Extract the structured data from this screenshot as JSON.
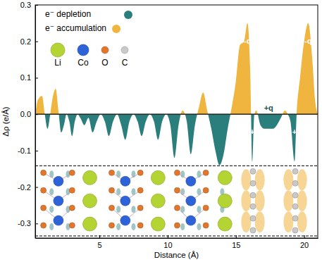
{
  "chart_data": {
    "type": "area",
    "x_label": "Distance (Å)",
    "y_label": "Δρ (e/Å)",
    "x": [
      0.3,
      0.5,
      0.8,
      1.0,
      1.2,
      1.4,
      1.6,
      1.8,
      2.0,
      2.2,
      2.4,
      2.6,
      2.8,
      3.0,
      3.2,
      3.4,
      3.6,
      3.9,
      4.2,
      4.5,
      4.8,
      5.1,
      5.4,
      5.7,
      6.0,
      6.3,
      6.6,
      6.9,
      7.2,
      7.5,
      7.8,
      8.1,
      8.4,
      8.7,
      9.0,
      9.3,
      9.6,
      9.9,
      10.2,
      10.5,
      10.8,
      11.1,
      11.4,
      11.7,
      12.0,
      12.3,
      12.6,
      12.9,
      13.2,
      13.5,
      13.8,
      14.1,
      14.4,
      14.7,
      15.0,
      15.3,
      15.6,
      15.85,
      16.05,
      16.2,
      16.35,
      16.5,
      16.8,
      17.1,
      17.4,
      17.7,
      18.0,
      18.3,
      18.6,
      18.8,
      19.0,
      19.3,
      19.45,
      19.7,
      20.0,
      20.3,
      20.6,
      20.8,
      21.0
    ],
    "values": [
      0.0,
      0.04,
      0.05,
      0.0,
      -0.04,
      0.0,
      0.05,
      0.07,
      0.01,
      -0.05,
      -0.03,
      0.0,
      -0.02,
      -0.06,
      -0.02,
      0.0,
      -0.01,
      -0.03,
      -0.01,
      -0.05,
      -0.02,
      0.0,
      -0.02,
      -0.06,
      -0.02,
      0.0,
      -0.03,
      -0.07,
      -0.02,
      0.0,
      -0.02,
      -0.06,
      -0.02,
      0.0,
      -0.02,
      -0.07,
      -0.02,
      0.0,
      -0.03,
      -0.12,
      -0.03,
      0.01,
      -0.02,
      -0.11,
      -0.03,
      0.02,
      0.06,
      0.01,
      -0.04,
      -0.1,
      -0.14,
      -0.11,
      -0.04,
      0.02,
      0.09,
      0.19,
      0.2,
      0.25,
      0.12,
      -0.13,
      0.0,
      0.01,
      -0.03,
      -0.04,
      -0.04,
      -0.04,
      -0.03,
      -0.01,
      0.01,
      0.0,
      -0.02,
      -0.13,
      0.0,
      0.1,
      0.2,
      0.25,
      0.15,
      0.04,
      0.0
    ],
    "series": [
      {
        "name": "e⁻ depletion",
        "color": "#2a7f7d"
      },
      {
        "name": "e⁻ accumulation",
        "color": "#f0b53e"
      }
    ],
    "atoms": [
      {
        "name": "Li",
        "color": "#b3d432"
      },
      {
        "name": "Co",
        "color": "#2e62d8"
      },
      {
        "name": "O",
        "color": "#e2762a"
      },
      {
        "name": "C",
        "color": "#c9c9c9"
      }
    ],
    "annotations": [
      {
        "text": "-q",
        "x": 15.85,
        "y": 0.2
      },
      {
        "text": "+",
        "x": 16.2,
        "y": -0.05
      },
      {
        "text": "+q",
        "x": 17.4,
        "y": 0.015
      },
      {
        "text": "+",
        "x": 19.3,
        "y": -0.05
      },
      {
        "text": "-q",
        "x": 20.3,
        "y": 0.2
      }
    ],
    "xlim": [
      0.3,
      21.0
    ],
    "ylim": [
      -0.34,
      0.3
    ],
    "xticks": [
      5,
      10,
      15,
      20
    ],
    "yticks": [
      -0.3,
      -0.2,
      -0.1,
      {
        "value": 0,
        "label": "0.0"
      },
      0.1,
      0.2,
      0.3
    ],
    "legend": "upper left"
  }
}
